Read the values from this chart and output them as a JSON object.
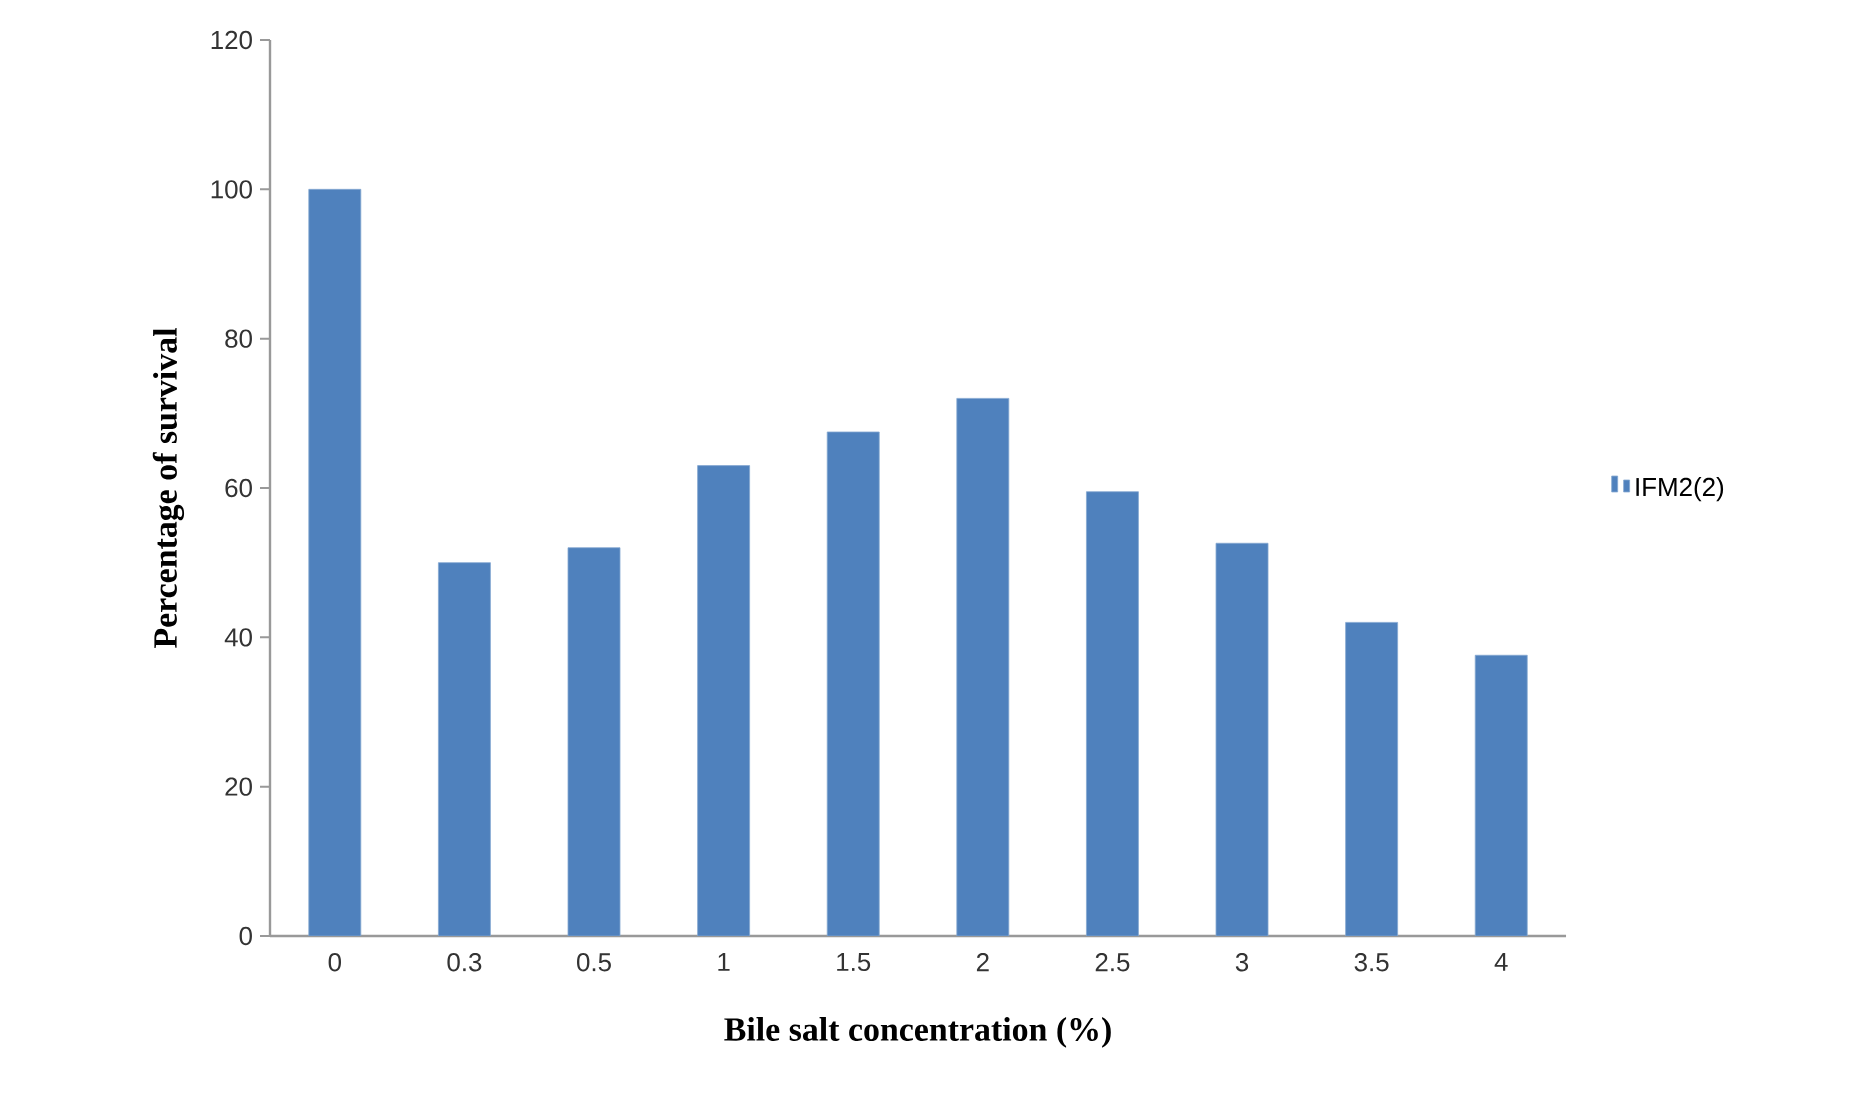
{
  "chart_data": {
    "type": "bar",
    "xlabel": "Bile salt concentration (%)",
    "ylabel": "Percentage of survival",
    "categories": [
      "0",
      "0.3",
      "0.5",
      "1",
      "1.5",
      "2",
      "2.5",
      "3",
      "3.5",
      "4"
    ],
    "series": [
      {
        "name": "IFM2(2)",
        "color": "#4f81bd",
        "values": [
          100,
          50,
          52,
          63,
          67.5,
          72,
          59.5,
          52.6,
          42,
          37.6
        ]
      }
    ],
    "ylim": [
      0,
      120
    ],
    "yticks": [
      0,
      20,
      40,
      60,
      80,
      100,
      120
    ],
    "grid": false,
    "legend": "right"
  }
}
